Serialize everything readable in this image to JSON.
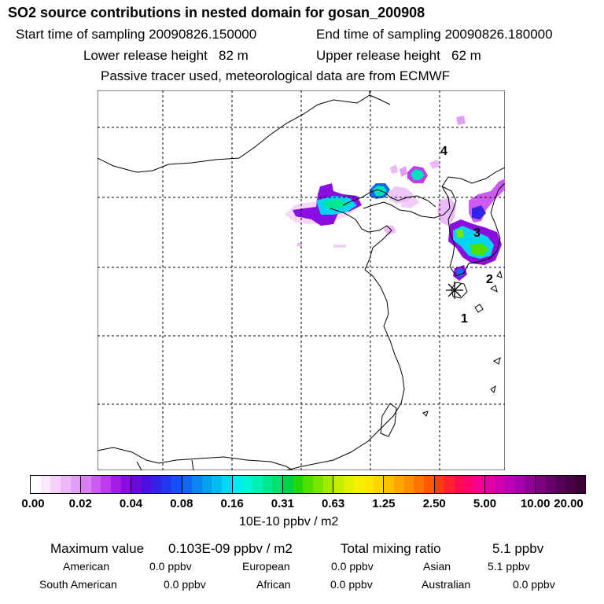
{
  "title": "SO2 source contributions in nested domain for gosan_200908",
  "sampling": {
    "start": "Start time of sampling 20090826.150000",
    "end": "End time of sampling 20090826.180000"
  },
  "release": {
    "lower": "Lower release height   82 m",
    "upper": "Upper release height   62 m"
  },
  "note": "Passive tracer used, meteorological data are from ECMWF",
  "map": {
    "markers": [
      "1",
      "2",
      "3",
      "4"
    ],
    "receptor_icon": "asterisk-receptor-icon"
  },
  "colorbar": {
    "ticks": [
      "0.00",
      "0.02",
      "0.04",
      "0.08",
      "0.16",
      "0.31",
      "0.63",
      "1.25",
      "2.50",
      "5.00",
      "10.00",
      "20.00"
    ],
    "unit": "10E-10 ppbv / m2",
    "colors": [
      [
        "#ffffff",
        "#fbe8fd",
        "#f4d0fb",
        "#ecb8f8",
        "#e29ef5"
      ],
      [
        "#d97ff3",
        "#cc5cf0",
        "#bd3aed",
        "#a71be8",
        "#8c0de2"
      ],
      [
        "#6b0bdc",
        "#4d10e0",
        "#3522e8",
        "#2238ef",
        "#1650f2"
      ],
      [
        "#1268f0",
        "#0c86ee",
        "#06a2ef",
        "#03bdf2",
        "#00d6f4"
      ],
      [
        "#00ecf0",
        "#00f4d8",
        "#00f0b6",
        "#00e892",
        "#00e06c"
      ],
      [
        "#00d446",
        "#22d80a",
        "#4ee000",
        "#78e600",
        "#a2ea00"
      ],
      [
        "#c4ee00",
        "#e2f000",
        "#f4ee00",
        "#ffe600",
        "#ffd400"
      ],
      [
        "#ffbe00",
        "#ffa600",
        "#ff8e00",
        "#ff7400",
        "#ff5a00"
      ],
      [
        "#ff3c10",
        "#ff2030",
        "#ff0c50",
        "#fb0470",
        "#f20090"
      ],
      [
        "#e400a4",
        "#d000b0",
        "#bc00b4",
        "#a600ae",
        "#900096"
      ],
      [
        "#7a0080",
        "#68006c",
        "#580058",
        "#4a0046",
        "#3c0036"
      ]
    ]
  },
  "stats": {
    "max_label": "Maximum value",
    "max_value": "0.103E-09 ppbv / m2",
    "total_label": "Total mixing ratio",
    "total_value": "5.1 ppbv",
    "regions": [
      {
        "name": "American",
        "value": "0.0 ppbv"
      },
      {
        "name": "European",
        "value": "0.0 ppbv"
      },
      {
        "name": "Asian",
        "value": "5.1 ppbv"
      },
      {
        "name": "South American",
        "value": "0.0 ppbv"
      },
      {
        "name": "African",
        "value": "0.0 ppbv"
      },
      {
        "name": "Australian",
        "value": "0.0 ppbv"
      }
    ]
  }
}
